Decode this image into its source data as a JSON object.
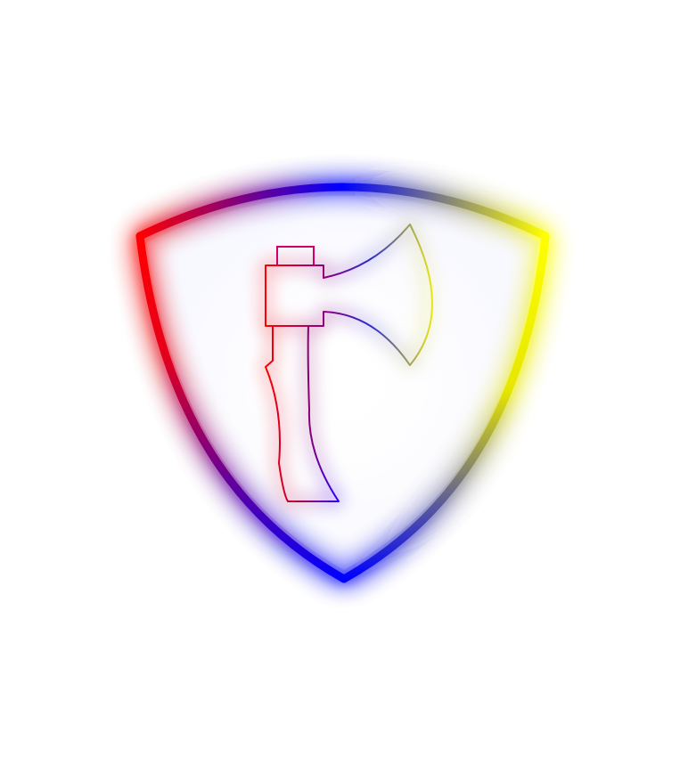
{
  "emblem": {
    "icon": "shield-with-axe-icon",
    "shield_icon": "shield-icon",
    "axe_icon": "axe-icon",
    "gradient_colors": {
      "red": "#ff0000",
      "blue": "#0000ff",
      "yellow": "#ffff00"
    },
    "glow": true
  }
}
